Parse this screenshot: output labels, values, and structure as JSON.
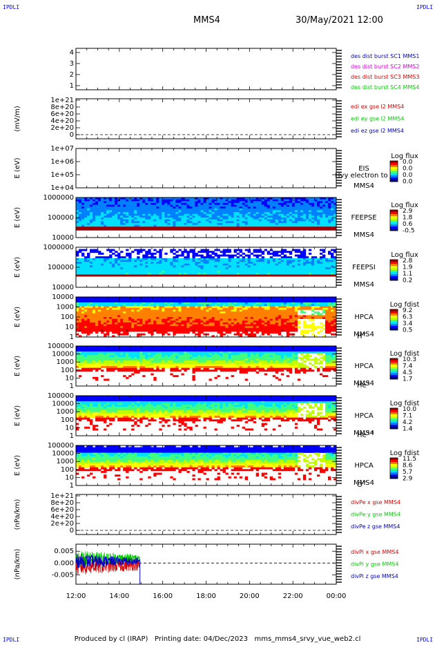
{
  "corners": {
    "label": "IPDLI"
  },
  "header": {
    "mission": "MMS4",
    "date": "30/May/2021 12:00"
  },
  "footer": {
    "produced_by": "Produced by cl (IRAP)",
    "printing_date": "Printing date: 04/Dec/2023",
    "script": "mms_mms4_srvy_vue_web2.cl"
  },
  "colors": {
    "blue": "#0000c0",
    "magenta": "#e000e0",
    "red": "#e00000",
    "green": "#00d000",
    "colorbar": [
      "#000080",
      "#0000ff",
      "#0080ff",
      "#00e0ff",
      "#40ff80",
      "#c0ff00",
      "#ffff00",
      "#ff8000",
      "#ff0000",
      "#a00000"
    ]
  },
  "chart_data": {
    "type": "line",
    "x_axis": {
      "ticks": [
        "12:00",
        "14:00",
        "16:00",
        "18:00",
        "20:00",
        "22:00",
        "00:00"
      ],
      "range_hours": [
        12,
        24
      ]
    },
    "panels": [
      {
        "id": "des-dist",
        "kind": "line",
        "y_ticks": [
          "4",
          "3",
          "2",
          "1"
        ],
        "ylabel": "",
        "legend": [
          {
            "text": "des dist burst SC1 MMS1",
            "color": "#0000c0"
          },
          {
            "text": "des dist burst SC2 MMS2",
            "color": "#e000e0"
          },
          {
            "text": "des dist burst SC3 MMS3",
            "color": "#e00000"
          },
          {
            "text": "des dist burst SC4 MMS4",
            "color": "#00d000"
          }
        ]
      },
      {
        "id": "edi",
        "kind": "line",
        "y_ticks": [
          "1e+21",
          "8e+20",
          "6e+20",
          "4e+20",
          "2e+20",
          "0"
        ],
        "ylabel": "(mV/m)",
        "zero_line": true,
        "legend": [
          {
            "text": "edi ex gse l2 MMS4",
            "color": "#e00000"
          },
          {
            "text": "edi ey gse l2 MMS4",
            "color": "#00d000"
          },
          {
            "text": "edi ez gse l2 MMS4",
            "color": "#0000c0"
          }
        ]
      },
      {
        "id": "eis",
        "kind": "spectrogram",
        "y_ticks": [
          "1e+07",
          "1e+06",
          "1e+05",
          "1e+04"
        ],
        "ylabel": "E (eV)",
        "labels": [
          "EIS",
          "MMS4"
        ],
        "overlay_text": "Hvy electron to",
        "colorbar": {
          "title": "Log flux",
          "ticks": [
            "0.0",
            "0.0",
            "0.0",
            "0.0"
          ]
        },
        "data": {
          "fill": "none"
        }
      },
      {
        "id": "feepse",
        "kind": "spectrogram",
        "y_ticks": [
          "1000000",
          "100000",
          "10000"
        ],
        "ylabel": "E (eV)",
        "labels": [
          "FEEPSE",
          "MMS4"
        ],
        "colorbar": {
          "title": "Log flux",
          "ticks": [
            "2.9",
            "1.8",
            "0.6",
            "-0.5"
          ]
        },
        "data": {
          "fill": "full",
          "profile": "feeps-e",
          "start_hour": 12,
          "end_hour": 24
        }
      },
      {
        "id": "feepsi",
        "kind": "spectrogram",
        "y_ticks": [
          "1000000",
          "100000",
          "10000"
        ],
        "ylabel": "E (eV)",
        "labels": [
          "FEEPSI",
          "MMS4"
        ],
        "colorbar": {
          "title": "Log flux",
          "ticks": [
            "2.8",
            "1.9",
            "1.1",
            "0.2"
          ]
        },
        "data": {
          "fill": "full",
          "profile": "feeps-i",
          "start_hour": 12,
          "end_hour": 24
        }
      },
      {
        "id": "hpca-h",
        "kind": "spectrogram",
        "y_ticks": [
          "10000",
          "1000",
          "100",
          "10",
          "1"
        ],
        "ylabel": "E (eV)",
        "labels": [
          "HPCA",
          "MMS4"
        ],
        "species": "H",
        "species_sup": "+",
        "colorbar": {
          "title": "Log fdist",
          "ticks": [
            "9.2",
            "6.3",
            "3.4",
            "0.5"
          ]
        },
        "data": {
          "fill": "full",
          "profile": "hpca-h",
          "start_hour": 12,
          "end_hour": 24,
          "disturbed_from_hour": 22.2
        }
      },
      {
        "id": "hpca-he",
        "kind": "spectrogram",
        "y_ticks": [
          "100000",
          "10000",
          "1000",
          "100",
          "10",
          "1"
        ],
        "ylabel": "E (eV)",
        "labels": [
          "HPCA",
          "MMS4"
        ],
        "species": "He",
        "species_sup": "+",
        "colorbar": {
          "title": "Log fdist",
          "ticks": [
            "10.3",
            "7.4",
            "4.5",
            "1.7"
          ]
        },
        "data": {
          "fill": "full",
          "profile": "hpca-he",
          "start_hour": 12,
          "end_hour": 24,
          "disturbed_from_hour": 22.2
        }
      },
      {
        "id": "hpca-hepp",
        "kind": "spectrogram",
        "y_ticks": [
          "100000",
          "10000",
          "1000",
          "100",
          "10",
          "1"
        ],
        "ylabel": "E (eV)",
        "labels": [
          "HPCA",
          "MMS4"
        ],
        "species": "He",
        "species_sup": "++",
        "colorbar": {
          "title": "Log fdist",
          "ticks": [
            "10.0",
            "7.1",
            "4.2",
            "1.4"
          ]
        },
        "data": {
          "fill": "full",
          "profile": "hpca-hepp",
          "start_hour": 12,
          "end_hour": 24,
          "disturbed_from_hour": 22.2
        }
      },
      {
        "id": "hpca-o",
        "kind": "spectrogram",
        "y_ticks": [
          "100000",
          "10000",
          "1000",
          "100",
          "10",
          "1"
        ],
        "ylabel": "E (eV)",
        "labels": [
          "HPCA",
          "MMS4"
        ],
        "species": "O",
        "species_sup": "+",
        "colorbar": {
          "title": "Log fdist",
          "ticks": [
            "11.5",
            "8.6",
            "5.7",
            "2.9"
          ]
        },
        "data": {
          "fill": "full",
          "profile": "hpca-o",
          "start_hour": 12,
          "end_hour": 24,
          "disturbed_from_hour": 22.2
        }
      },
      {
        "id": "divpe",
        "kind": "line",
        "y_ticks": [
          "1e+21",
          "8e+20",
          "6e+20",
          "4e+20",
          "2e+20",
          "0"
        ],
        "ylabel": "(nPa/km)",
        "zero_line": true,
        "legend": [
          {
            "text": "divPe x gse MMS4",
            "color": "#e00000"
          },
          {
            "text": "divPe y gse MMS4",
            "color": "#00d000"
          },
          {
            "text": "divPe z gse MMS4",
            "color": "#0000c0"
          }
        ]
      },
      {
        "id": "divpi",
        "kind": "line",
        "y_ticks": [
          "0.005",
          "0.000",
          "-0.005"
        ],
        "y_values": [
          0.005,
          0.0,
          -0.005
        ],
        "ylim": [
          -0.009,
          0.008
        ],
        "ylabel": "(nPa/km)",
        "zero_line": true,
        "legend": [
          {
            "text": "divPi x gse MMS4",
            "color": "#e00000"
          },
          {
            "text": "divPi y gse MMS4",
            "color": "#00d000"
          },
          {
            "text": "divPi z gse MMS4",
            "color": "#0000c0"
          }
        ],
        "series": [
          {
            "name": "divPi x gse MMS4",
            "color": "#e00000",
            "t_start": 12.0,
            "t_end": 14.95,
            "mean": -0.001,
            "amplitude": 0.0045
          },
          {
            "name": "divPi y gse MMS4",
            "color": "#00d000",
            "t_start": 12.0,
            "t_end": 14.95,
            "mean": 0.002,
            "amplitude": 0.0035
          },
          {
            "name": "divPi z gse MMS4",
            "color": "#0000c0",
            "t_start": 12.0,
            "t_end": 14.95,
            "mean": 0.0008,
            "amplitude": 0.003
          }
        ]
      }
    ]
  }
}
